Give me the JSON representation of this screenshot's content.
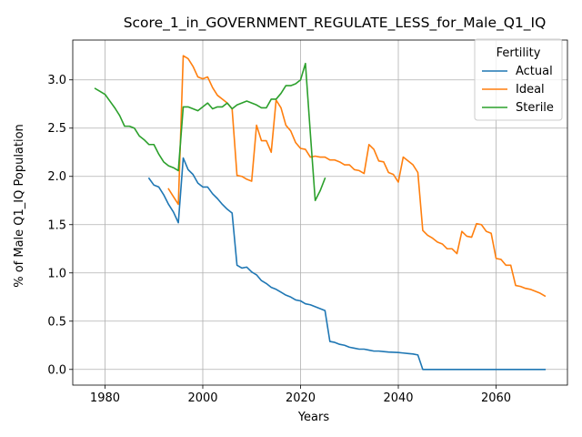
{
  "chart_data": {
    "type": "line",
    "title": "Score_1_in_GOVERNMENT_REGULATE_LESS_for_Male_Q1_IQ",
    "xlabel": "Years",
    "ylabel": "% of Male Q1_IQ Population",
    "xlim": [
      1973.4,
      2074.6
    ],
    "ylim": [
      -0.1625,
      3.4125
    ],
    "xticks": [
      1980,
      2000,
      2020,
      2040,
      2060
    ],
    "xtick_labels": [
      "1980",
      "2000",
      "2020",
      "2040",
      "2060"
    ],
    "yticks": [
      0.0,
      0.5,
      1.0,
      1.5,
      2.0,
      2.5,
      3.0
    ],
    "ytick_labels": [
      "0.0",
      "0.5",
      "1.0",
      "1.5",
      "2.0",
      "2.5",
      "3.0"
    ],
    "grid": true,
    "legend": {
      "title": "Fertility",
      "position": "top-right"
    },
    "series": [
      {
        "name": "Actual",
        "color": "#1f77b4",
        "x": [
          1989,
          1990,
          1991,
          1992,
          1993,
          1994,
          1995,
          1996,
          1997,
          1998,
          1999,
          2000,
          2001,
          2002,
          2003,
          2004,
          2005,
          2006,
          2007,
          2008,
          2009,
          2010,
          2011,
          2012,
          2013,
          2014,
          2015,
          2016,
          2017,
          2018,
          2019,
          2020,
          2021,
          2022,
          2023,
          2024,
          2025,
          2026,
          2027,
          2028,
          2029,
          2030,
          2031,
          2032,
          2033,
          2034,
          2035,
          2036,
          2037,
          2038,
          2039,
          2040,
          2041,
          2042,
          2043,
          2044,
          2045,
          2046,
          2047,
          2048,
          2049,
          2050,
          2051,
          2052,
          2053,
          2054,
          2055,
          2056,
          2057,
          2058,
          2059,
          2060,
          2061,
          2062,
          2063,
          2064,
          2065,
          2066,
          2067,
          2068,
          2069,
          2070
        ],
        "y": [
          1.98,
          1.91,
          1.89,
          1.81,
          1.71,
          1.63,
          1.52,
          2.19,
          2.07,
          2.02,
          1.93,
          1.89,
          1.89,
          1.82,
          1.77,
          1.71,
          1.66,
          1.62,
          1.08,
          1.05,
          1.06,
          1.01,
          0.98,
          0.92,
          0.89,
          0.85,
          0.83,
          0.8,
          0.77,
          0.75,
          0.72,
          0.71,
          0.68,
          0.67,
          0.65,
          0.63,
          0.61,
          0.29,
          0.28,
          0.26,
          0.25,
          0.23,
          0.22,
          0.21,
          0.21,
          0.2,
          0.19,
          0.19,
          0.185,
          0.18,
          0.178,
          0.175,
          0.17,
          0.165,
          0.16,
          0.15,
          0.0,
          0.0,
          0.0,
          0.0,
          0.0,
          0.0,
          0.0,
          0.0,
          0.0,
          0.0,
          0.0,
          0.0,
          0.0,
          0.0,
          0.0,
          0.0,
          0.0,
          0.0,
          0.0,
          0.0,
          0.0,
          0.0,
          0.0,
          0.0,
          0.0,
          0.0
        ]
      },
      {
        "name": "Ideal",
        "color": "#ff7f0e",
        "x": [
          1993,
          1994,
          1995,
          1996,
          1997,
          1998,
          1999,
          2000,
          2001,
          2002,
          2003,
          2004,
          2005,
          2006,
          2007,
          2008,
          2009,
          2010,
          2011,
          2012,
          2013,
          2014,
          2015,
          2016,
          2017,
          2018,
          2019,
          2020,
          2021,
          2022,
          2023,
          2024,
          2025,
          2026,
          2027,
          2028,
          2029,
          2030,
          2031,
          2032,
          2033,
          2034,
          2035,
          2036,
          2037,
          2038,
          2039,
          2040,
          2041,
          2042,
          2043,
          2044,
          2045,
          2046,
          2047,
          2048,
          2049,
          2050,
          2051,
          2052,
          2053,
          2054,
          2055,
          2056,
          2057,
          2058,
          2059,
          2060,
          2061,
          2062,
          2063,
          2064,
          2065,
          2066,
          2067,
          2068,
          2069,
          2070
        ],
        "y": [
          1.87,
          1.79,
          1.71,
          3.25,
          3.22,
          3.14,
          3.03,
          3.01,
          3.03,
          2.92,
          2.84,
          2.8,
          2.76,
          2.7,
          2.01,
          2.0,
          1.97,
          1.95,
          2.53,
          2.37,
          2.37,
          2.25,
          2.79,
          2.71,
          2.53,
          2.47,
          2.35,
          2.29,
          2.28,
          2.2,
          2.21,
          2.2,
          2.2,
          2.17,
          2.17,
          2.15,
          2.12,
          2.12,
          2.07,
          2.06,
          2.03,
          2.33,
          2.28,
          2.16,
          2.15,
          2.04,
          2.02,
          1.94,
          2.2,
          2.16,
          2.12,
          2.04,
          1.44,
          1.39,
          1.36,
          1.32,
          1.3,
          1.25,
          1.25,
          1.2,
          1.43,
          1.38,
          1.37,
          1.51,
          1.5,
          1.43,
          1.41,
          1.15,
          1.14,
          1.08,
          1.08,
          0.87,
          0.86,
          0.84,
          0.83,
          0.81,
          0.79,
          0.76
        ]
      },
      {
        "name": "Sterile",
        "color": "#2ca02c",
        "x": [
          1978,
          1979,
          1980,
          1981,
          1982,
          1983,
          1984,
          1985,
          1986,
          1987,
          1988,
          1989,
          1990,
          1991,
          1992,
          1993,
          1994,
          1995,
          1996,
          1997,
          1998,
          1999,
          2000,
          2001,
          2002,
          2003,
          2004,
          2005,
          2006,
          2007,
          2008,
          2009,
          2010,
          2011,
          2012,
          2013,
          2014,
          2015,
          2016,
          2017,
          2018,
          2019,
          2020,
          2021,
          2022,
          2023,
          2024,
          2025
        ],
        "y": [
          2.91,
          2.88,
          2.85,
          2.78,
          2.71,
          2.63,
          2.52,
          2.52,
          2.5,
          2.42,
          2.38,
          2.33,
          2.33,
          2.23,
          2.15,
          2.11,
          2.09,
          2.06,
          2.72,
          2.72,
          2.7,
          2.68,
          2.72,
          2.76,
          2.7,
          2.72,
          2.72,
          2.76,
          2.7,
          2.74,
          2.76,
          2.78,
          2.76,
          2.74,
          2.71,
          2.71,
          2.8,
          2.8,
          2.86,
          2.94,
          2.94,
          2.96,
          3.0,
          3.17,
          2.45,
          1.75,
          1.85,
          1.98
        ]
      }
    ]
  }
}
